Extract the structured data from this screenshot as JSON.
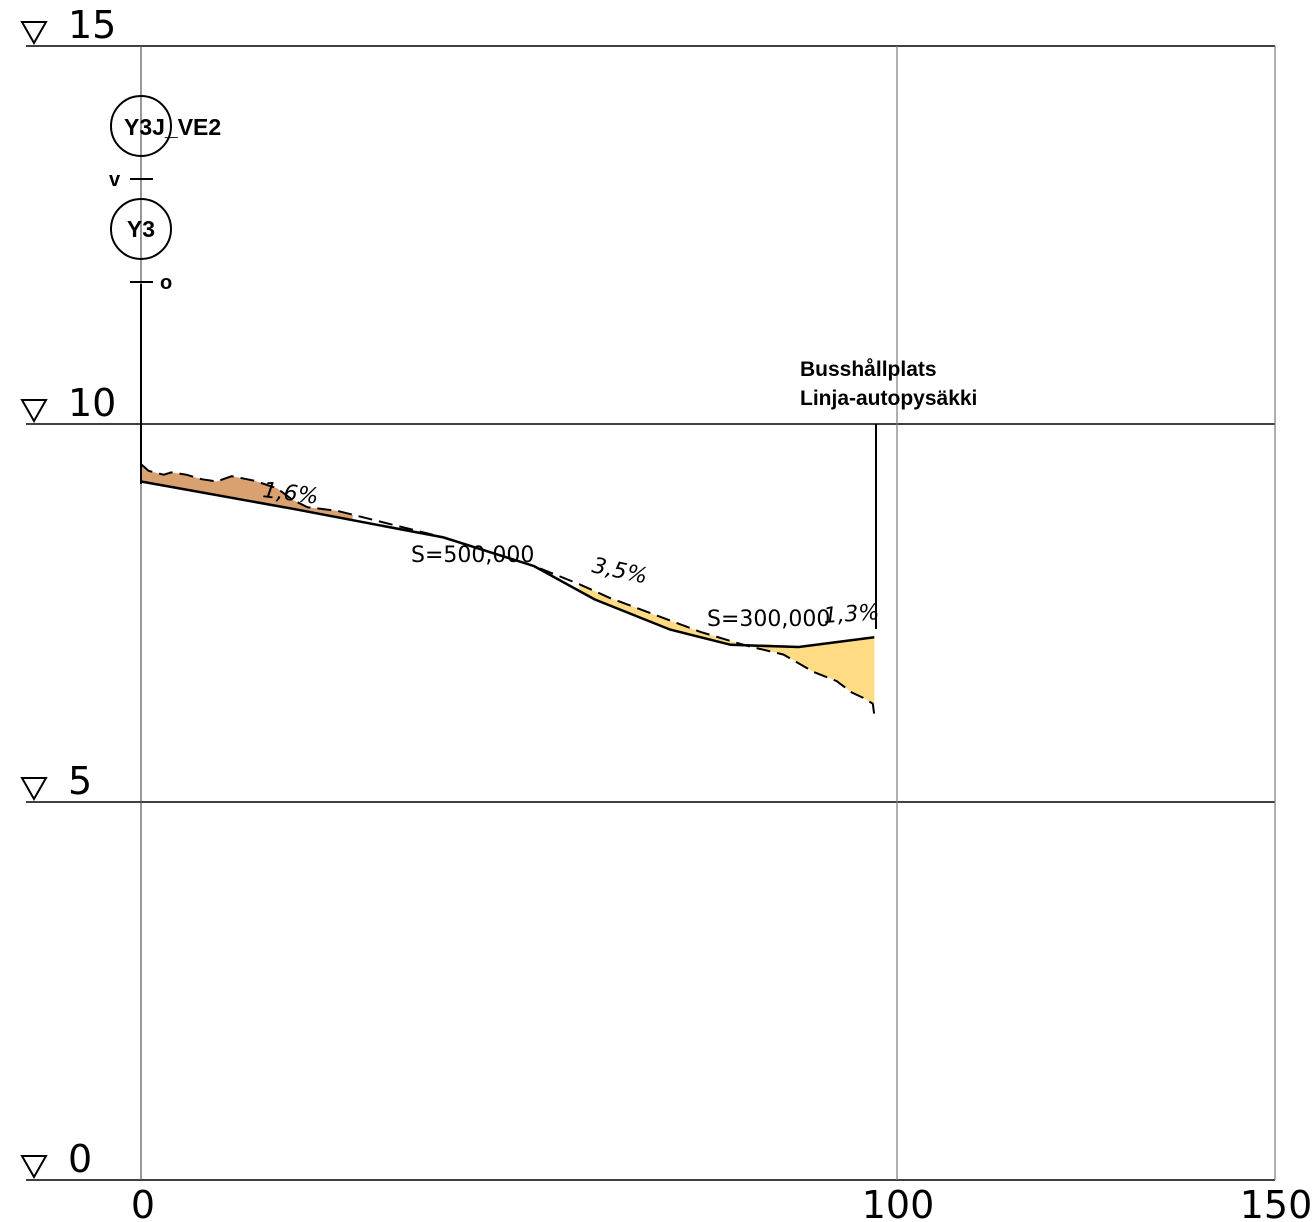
{
  "colors": {
    "grid": "#000000",
    "vgrid": "#7a7a7a",
    "cut_fill": "#d9a170",
    "fill_fill": "#ffdc84",
    "line": "#000000"
  },
  "chart_data": {
    "type": "profile",
    "xlim": [
      0,
      150
    ],
    "ylim": [
      0,
      15
    ],
    "y_ticks": [
      {
        "value": 15,
        "label": "15"
      },
      {
        "value": 10,
        "label": "10"
      },
      {
        "value": 5,
        "label": "5"
      },
      {
        "value": 0,
        "label": "0"
      }
    ],
    "x_ticks": [
      {
        "value": 0,
        "label": "0"
      },
      {
        "value": 100,
        "label": "100"
      },
      {
        "value": 150,
        "label": "150"
      }
    ],
    "design_profile": [
      [
        0,
        9.24
      ],
      [
        20,
        8.88
      ],
      [
        40,
        8.5
      ],
      [
        52,
        8.12
      ],
      [
        60,
        7.68
      ],
      [
        70,
        7.28
      ],
      [
        78,
        7.08
      ],
      [
        87,
        7.05
      ],
      [
        97,
        7.18
      ]
    ],
    "ground_profile": [
      [
        0,
        9.47
      ],
      [
        1,
        9.38
      ],
      [
        3,
        9.33
      ],
      [
        4,
        9.36
      ],
      [
        6,
        9.33
      ],
      [
        8,
        9.27
      ],
      [
        10,
        9.24
      ],
      [
        12,
        9.31
      ],
      [
        15,
        9.25
      ],
      [
        18,
        9.15
      ],
      [
        20,
        9.0
      ],
      [
        22,
        8.9
      ],
      [
        26,
        8.85
      ],
      [
        28,
        8.8
      ],
      [
        40,
        8.5
      ],
      [
        52,
        8.12
      ],
      [
        58,
        7.88
      ],
      [
        62,
        7.7
      ],
      [
        66,
        7.55
      ],
      [
        74,
        7.25
      ],
      [
        80,
        7.07
      ],
      [
        85,
        6.95
      ],
      [
        89,
        6.72
      ],
      [
        92,
        6.6
      ],
      [
        94,
        6.45
      ],
      [
        95.5,
        6.38
      ],
      [
        96.8,
        6.3
      ],
      [
        97,
        6.15
      ]
    ],
    "stations": [
      {
        "label": "Y3J_VE2",
        "offset_label": "v"
      },
      {
        "label": "Y3",
        "offset_label": "o"
      }
    ],
    "annotations": [
      {
        "text": "1,6%"
      },
      {
        "text": "S=500,000"
      },
      {
        "text": "3,5%"
      },
      {
        "text": "S=300,000"
      },
      {
        "text": "1,3%"
      }
    ],
    "landmark": {
      "x": 97,
      "line1": "Busshållplats",
      "line2": "Linja-autopysäkki"
    }
  }
}
